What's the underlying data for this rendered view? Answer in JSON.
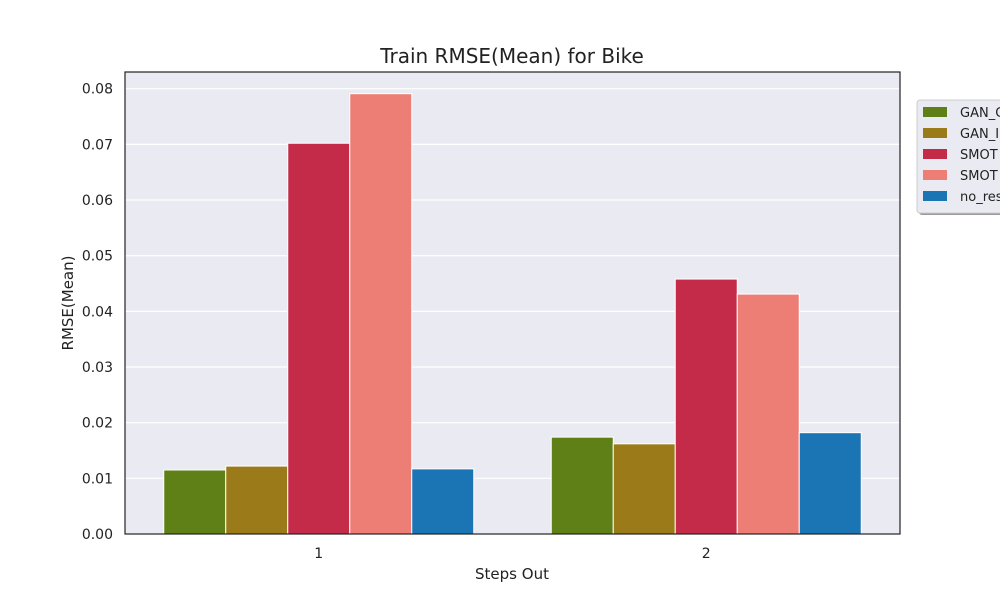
{
  "chart_data": {
    "type": "bar",
    "title": "Train RMSE(Mean) for Bike",
    "xlabel": "Steps Out",
    "ylabel": "RMSE(Mean)",
    "categories": [
      "1",
      "2"
    ],
    "ylim": [
      0,
      0.083
    ],
    "yticks": [
      "0.00",
      "0.01",
      "0.02",
      "0.03",
      "0.04",
      "0.05",
      "0.06",
      "0.07",
      "0.08"
    ],
    "grid": true,
    "legend_position": "right, outside plot (clipped)",
    "series": [
      {
        "name": "GAN_C",
        "color": "#5f8016",
        "values": [
          0.0115,
          0.0174
        ]
      },
      {
        "name": "GAN_I",
        "color": "#9b7b19",
        "values": [
          0.0122,
          0.0162
        ]
      },
      {
        "name": "SMOT",
        "color": "#c32b49",
        "values": [
          0.0702,
          0.0458
        ]
      },
      {
        "name": "SMOT",
        "color": "#ec7e76",
        "values": [
          0.0791,
          0.0431
        ]
      },
      {
        "name": "no_res",
        "color": "#1b74b3",
        "values": [
          0.0117,
          0.0182
        ]
      }
    ]
  }
}
